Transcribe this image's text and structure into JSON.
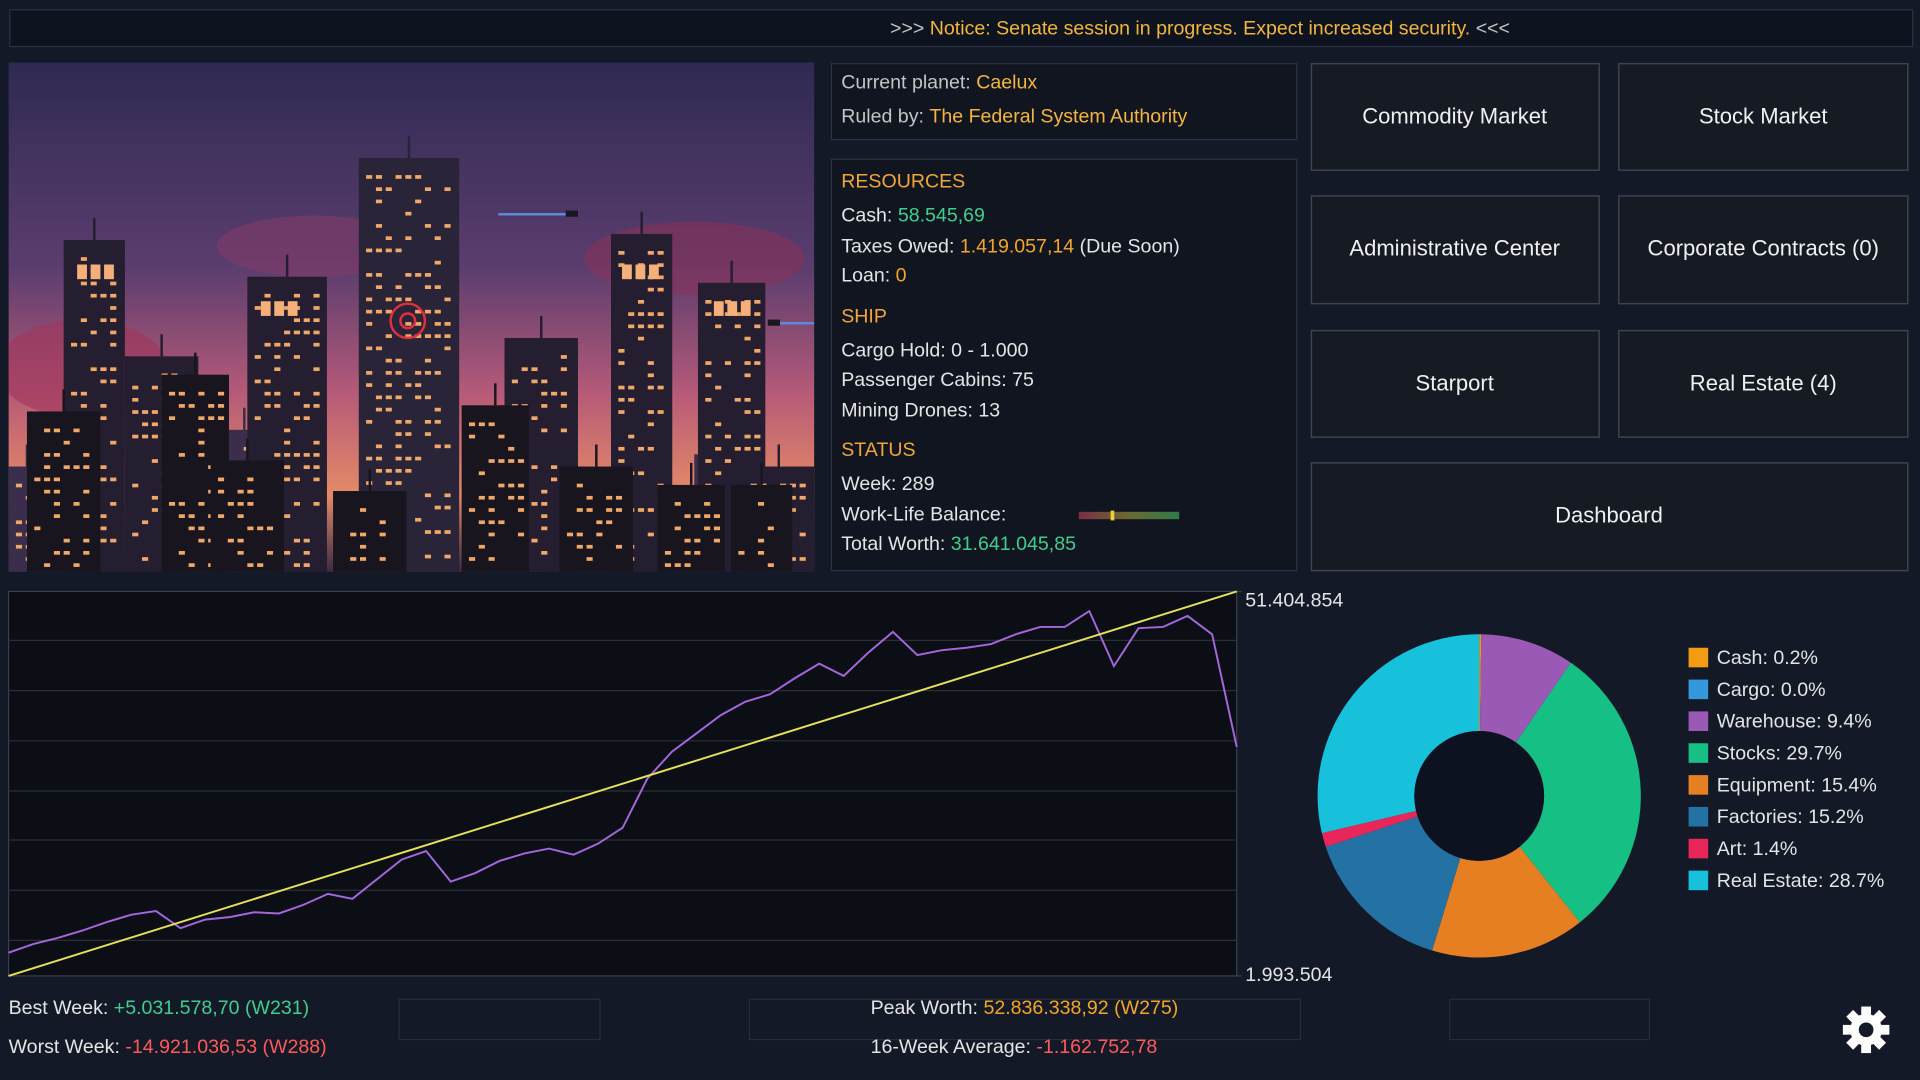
{
  "notice": {
    "prefix": ">>>",
    "text": "Notice: Senate session in progress. Expect increased security.",
    "suffix": "<<<"
  },
  "planet": {
    "label": "Current planet:",
    "value": "Caelux",
    "ruler_label": "Ruled by:",
    "ruler": "The Federal System Authority"
  },
  "resources": {
    "title": "RESOURCES",
    "cash_label": "Cash:",
    "cash": "58.545,69",
    "taxes_label": "Taxes Owed:",
    "taxes": "1.419.057,14",
    "taxes_note": "(Due Soon)",
    "loan_label": "Loan:",
    "loan": "0"
  },
  "ship": {
    "title": "SHIP",
    "lines": [
      "Cargo Hold: 0 - 1.000",
      "Passenger Cabins: 75",
      "Mining Drones: 13"
    ]
  },
  "status": {
    "title": "STATUS",
    "week": "Week: 289",
    "balance_label": "Work-Life Balance:",
    "worth_label": "Total Worth:",
    "worth": "31.641.045,85"
  },
  "buttons": [
    "Commodity Market",
    "Stock Market",
    "Administrative Center",
    "Corporate Contracts (0)",
    "Starport",
    "Real Estate (4)",
    "Dashboard"
  ],
  "chart_data": [
    {
      "type": "line",
      "series": [
        {
          "color": "#a466dc",
          "values": [
            4980000,
            6080000,
            6870000,
            7820000,
            8920000,
            9860000,
            10330000,
            8130000,
            9230000,
            9550000,
            10180000,
            10020000,
            11120000,
            12540000,
            11910000,
            14430000,
            16940000,
            18040000,
            14110000,
            15210000,
            16790000,
            17730000,
            18360000,
            17570000,
            18990000,
            21030000,
            27330000,
            30790000,
            33150000,
            35510000,
            37240000,
            38180000,
            40230000,
            42120000,
            40550000,
            43540000,
            46210000,
            43220000,
            43850000,
            44170000,
            44640000,
            45900000,
            46840000,
            46840000,
            48880000,
            41810000,
            46680000,
            46840000,
            48260000,
            45900000,
            31420000
          ]
        },
        {
          "color": "#e6e05a",
          "values": [
            1993504,
            51404854
          ]
        }
      ],
      "ylim": [
        1993504,
        51404854
      ],
      "yticks": [
        {
          "value": 1993504,
          "label": "1.993.504"
        },
        {
          "value": 51404854,
          "label": "51.404.854"
        }
      ]
    },
    {
      "type": "pie",
      "values": [
        0.2,
        0.0,
        9.4,
        29.7,
        15.4,
        15.2,
        1.4,
        28.7
      ],
      "value_labels": [
        "Cash: 0.2%",
        "Cargo: 0.0%",
        "Warehouse: 9.4%",
        "Stocks: 29.7%",
        "Equipment: 15.4%",
        "Factories: 15.2%",
        "Art: 1.4%",
        "Real Estate: 28.7%"
      ],
      "colors": [
        "#f39c12",
        "#3498db",
        "#9b59b6",
        "#16c084",
        "#e67e22",
        "#2471a3",
        "#e8265a",
        "#17c1dc"
      ]
    }
  ],
  "summary": {
    "best_label": "Best Week:",
    "best": "+5.031.578,70 (W231)",
    "worst_label": "Worst Week:",
    "worst": "-14.921.036,53 (W288)",
    "peak_label": "Peak Worth:",
    "peak": "52.836.338,92 (W275)",
    "avg_label": "16-Week Average:",
    "avg": "-1.162.752,78"
  }
}
